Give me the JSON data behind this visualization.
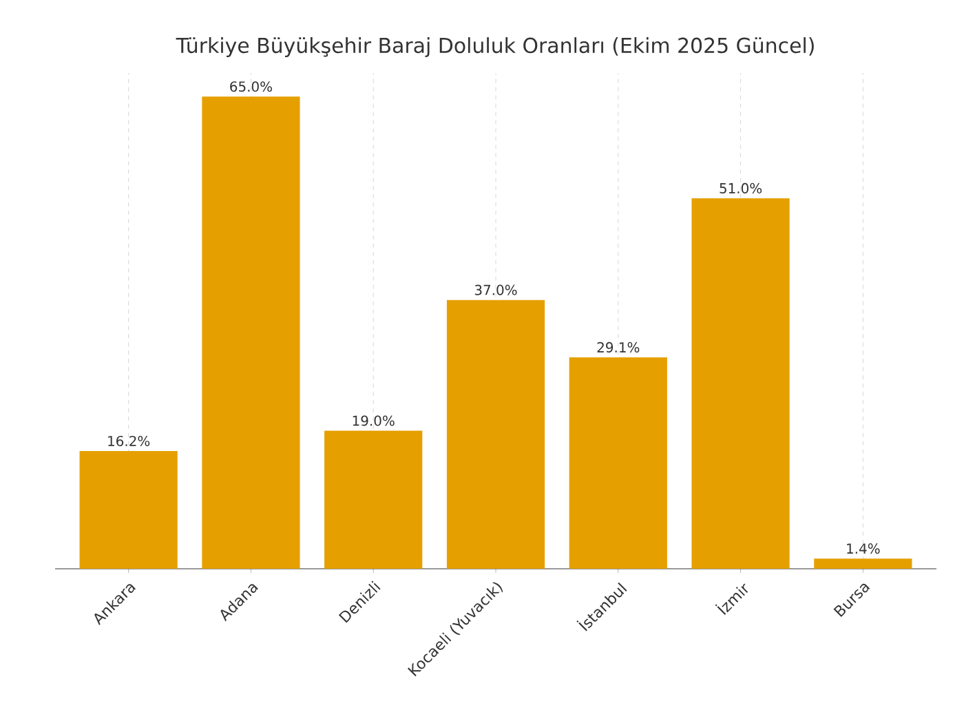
{
  "chart_data": {
    "type": "bar",
    "title": "Türkiye Büyükşehir Baraj Doluluk Oranları (Ekim 2025 Güncel)",
    "categories": [
      "Ankara",
      "Adana",
      "Denizli",
      "Kocaeli (Yuvacık)",
      "İstanbul",
      "İzmir",
      "Bursa"
    ],
    "values": [
      16.2,
      65.0,
      19.0,
      37.0,
      29.1,
      51.0,
      1.4
    ],
    "value_labels": [
      "16.2%",
      "65.0%",
      "19.0%",
      "37.0%",
      "29.1%",
      "51.0%",
      "1.4%"
    ],
    "color": "#e5a000",
    "grid": "x",
    "tick_labels": "x"
  }
}
